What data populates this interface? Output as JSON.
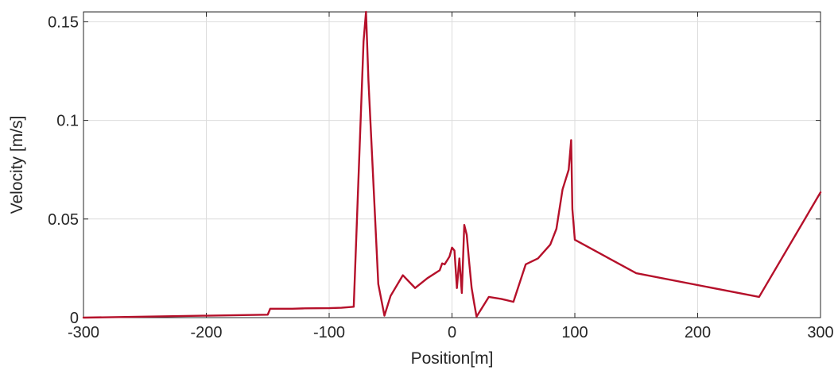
{
  "chart_data": {
    "type": "line",
    "title": "",
    "xlabel": "Position[m]",
    "ylabel": "Velocity [m/s]",
    "xlim": [
      -300,
      300
    ],
    "ylim": [
      0,
      0.155
    ],
    "xticks": [
      -300,
      -200,
      -100,
      0,
      100,
      200,
      300
    ],
    "xtick_labels": [
      "-300",
      "-200",
      "-100",
      "0",
      "100",
      "200",
      "300"
    ],
    "yticks": [
      0,
      0.05,
      0.1,
      0.15
    ],
    "ytick_labels": [
      "0",
      "0.05",
      "0.1",
      "0.15"
    ],
    "grid": true,
    "legend": "none",
    "colors": {
      "series": "#b5102a",
      "grid": "#dcdcdc",
      "axis": "#262626"
    },
    "series": [
      {
        "x": [
          -300,
          -200,
          -150,
          -148,
          -130,
          -120,
          -100,
          -90,
          -80,
          -72,
          -70,
          -68,
          -60,
          -55,
          -50,
          -40,
          -30,
          -20,
          -10,
          -8,
          -6,
          -4,
          -2,
          0,
          2,
          4,
          6,
          8,
          10,
          12,
          14,
          16,
          18,
          20,
          30,
          40,
          50,
          60,
          70,
          80,
          85,
          90,
          95,
          97,
          98,
          100,
          150,
          250,
          300
        ],
        "y": [
          0,
          0.001,
          0.0015,
          0.0045,
          0.0045,
          0.0047,
          0.0048,
          0.005,
          0.0055,
          0.14,
          0.155,
          0.12,
          0.017,
          0.001,
          0.011,
          0.0215,
          0.015,
          0.02,
          0.024,
          0.0275,
          0.027,
          0.029,
          0.031,
          0.0355,
          0.034,
          0.015,
          0.03,
          0.0125,
          0.047,
          0.042,
          0.028,
          0.015,
          0.0075,
          0.0005,
          0.0105,
          0.0095,
          0.008,
          0.027,
          0.03,
          0.037,
          0.045,
          0.065,
          0.075,
          0.09,
          0.055,
          0.0395,
          0.0225,
          0.0105,
          0.0635
        ]
      }
    ]
  }
}
